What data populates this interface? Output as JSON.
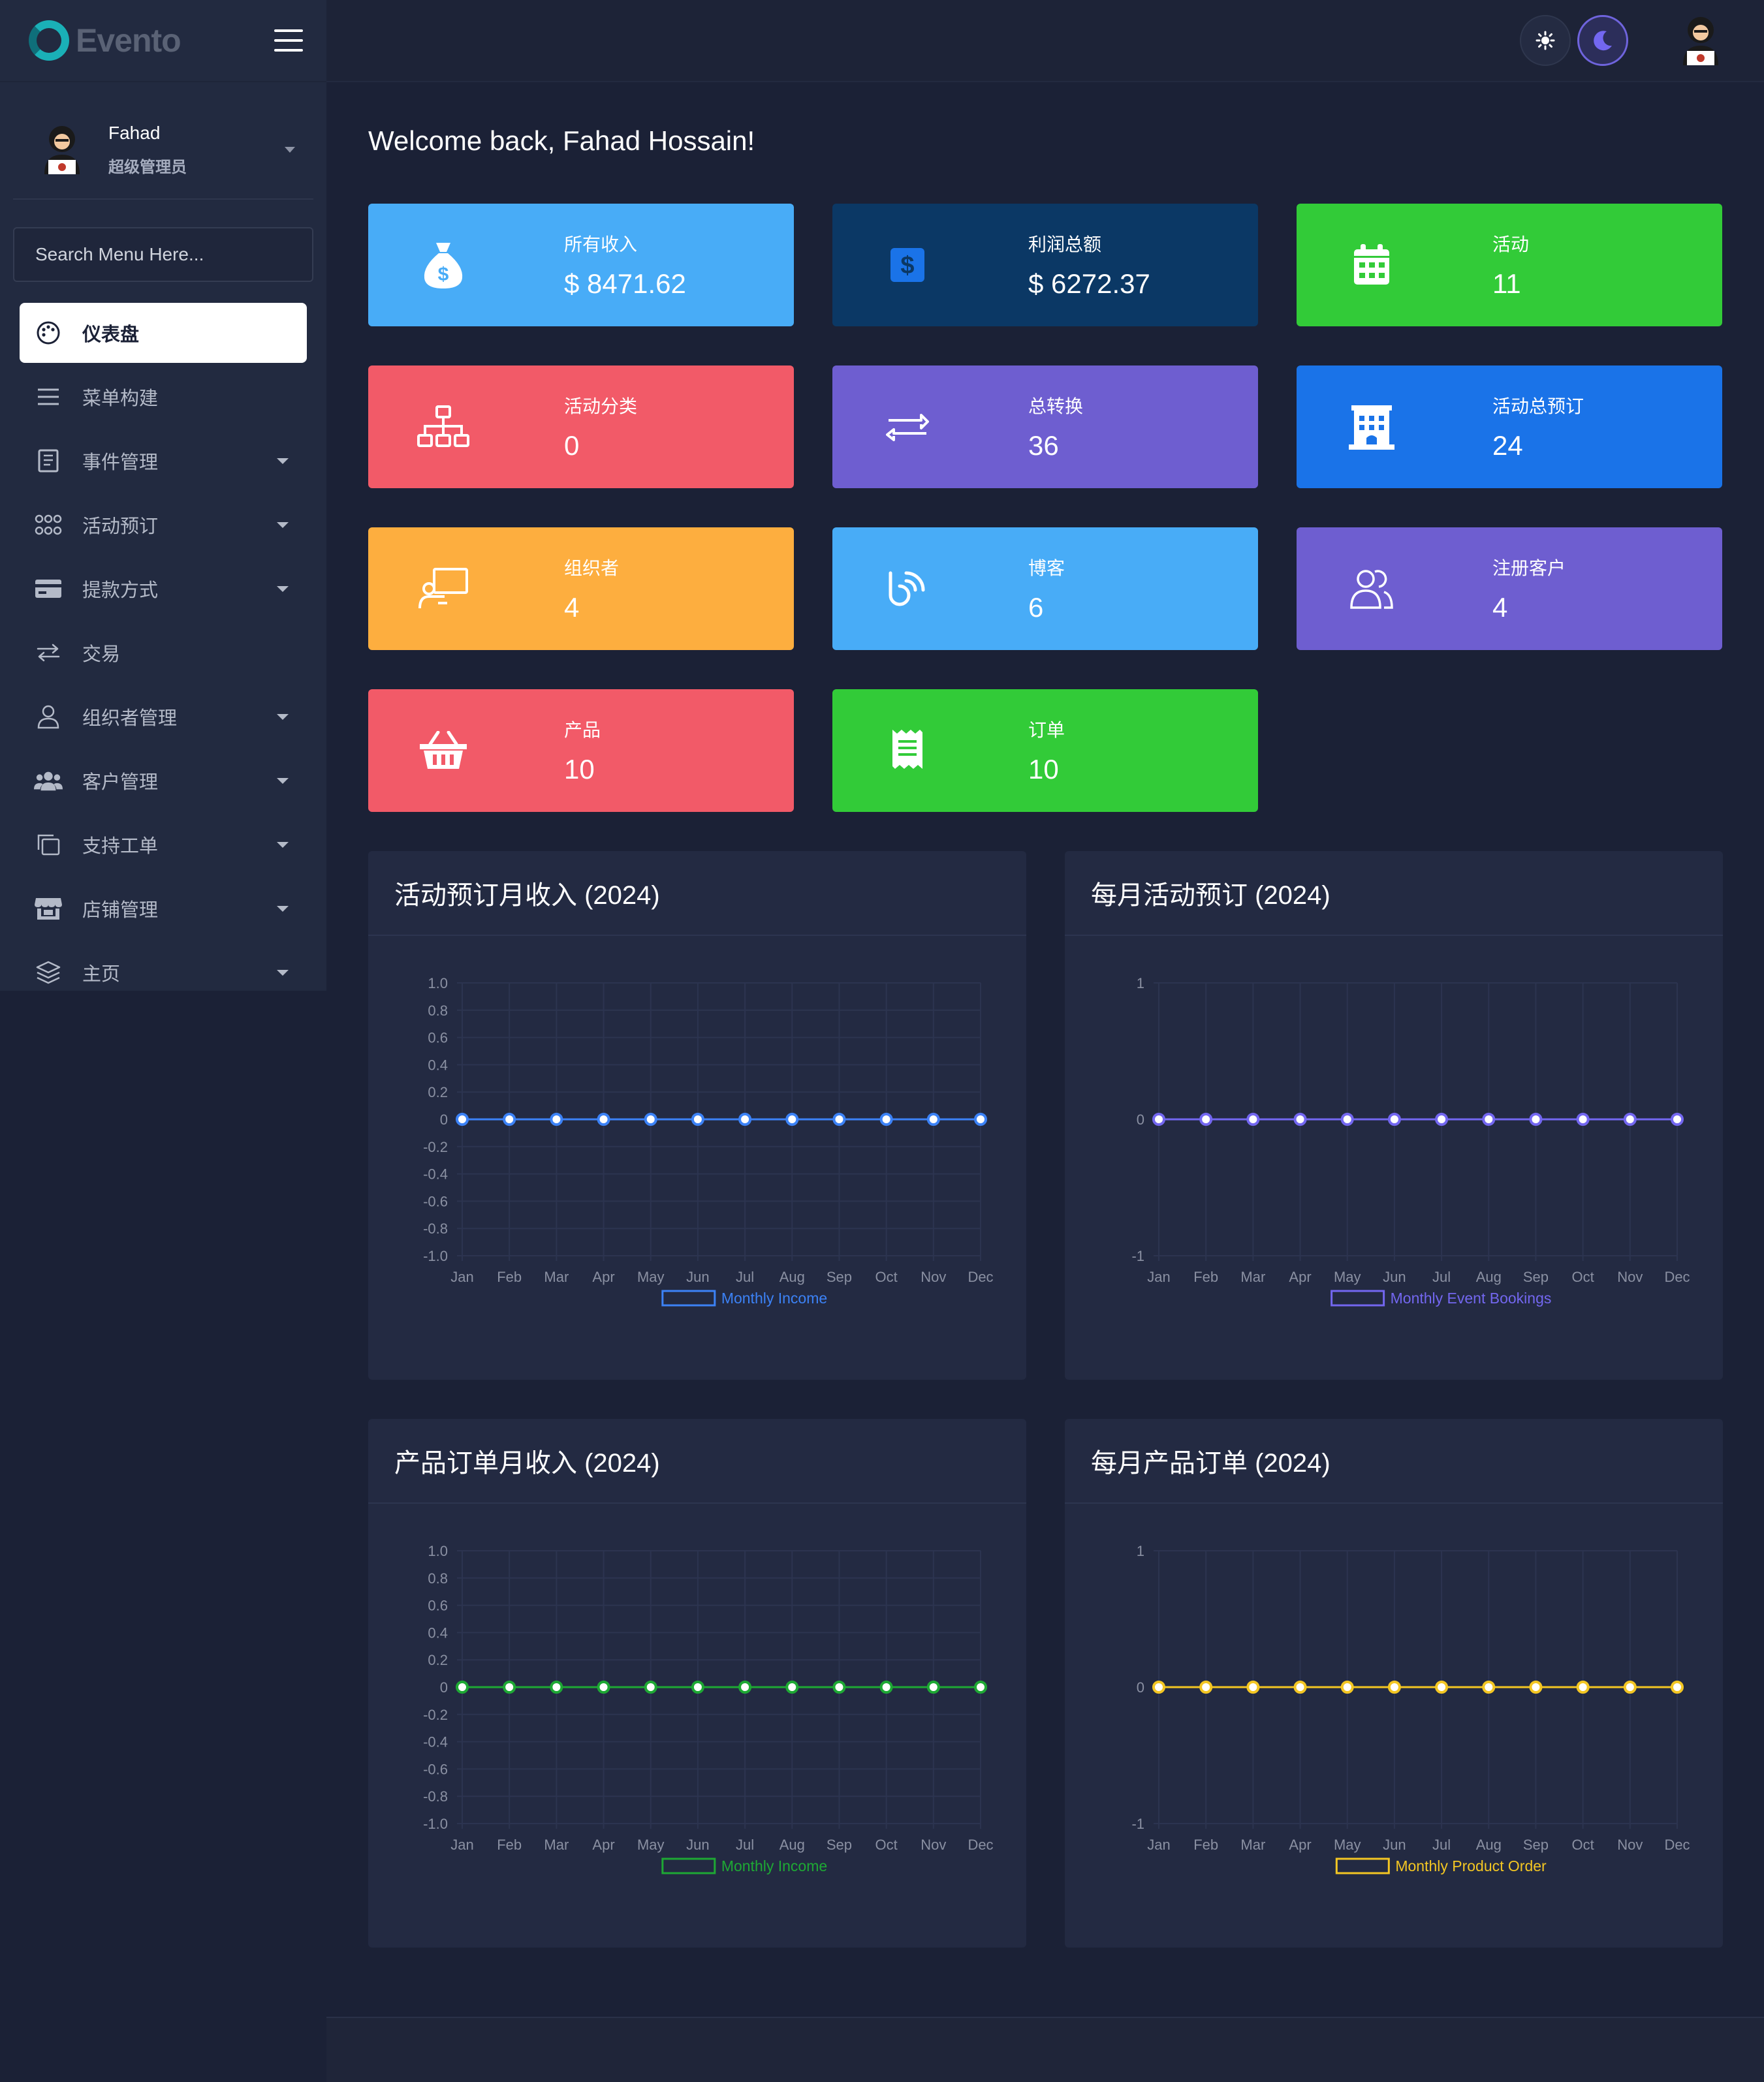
{
  "brand": {
    "name": "Evento"
  },
  "profile": {
    "name": "Fahad",
    "role": "超级管理员"
  },
  "search": {
    "placeholder": "Search Menu Here..."
  },
  "menu": [
    {
      "label": "仪表盘",
      "icon": "palette-icon",
      "active": true,
      "caret": false
    },
    {
      "label": "菜单构建",
      "icon": "list-icon",
      "active": false,
      "caret": false
    },
    {
      "label": "事件管理",
      "icon": "book-icon",
      "active": false,
      "caret": true
    },
    {
      "label": "活动预订",
      "icon": "users-group-icon",
      "active": false,
      "caret": true
    },
    {
      "label": "提款方式",
      "icon": "credit-card-icon",
      "active": false,
      "caret": true
    },
    {
      "label": "交易",
      "icon": "exchange-icon",
      "active": false,
      "caret": false
    },
    {
      "label": "组织者管理",
      "icon": "user-icon",
      "active": false,
      "caret": true
    },
    {
      "label": "客户管理",
      "icon": "users-icon",
      "active": false,
      "caret": true
    },
    {
      "label": "支持工单",
      "icon": "copy-icon",
      "active": false,
      "caret": true
    },
    {
      "label": "店铺管理",
      "icon": "store-icon",
      "active": false,
      "caret": true
    },
    {
      "label": "主页",
      "icon": "layers-icon",
      "active": false,
      "caret": true
    }
  ],
  "welcome": "Welcome back, Fahad Hossain!",
  "cards": [
    {
      "label": "所有收入",
      "value": "$ 8471.62",
      "color": "#48acf7",
      "icon": "money-bag-icon"
    },
    {
      "label": "利润总额",
      "value": "$ 6272.37",
      "color": "#0b3865",
      "icon": "dollar-square-icon"
    },
    {
      "label": "活动",
      "value": "11",
      "color": "#32cb38",
      "icon": "calendar-icon"
    },
    {
      "label": "活动分类",
      "value": "0",
      "color": "#f25a68",
      "icon": "sitemap-icon"
    },
    {
      "label": "总转换",
      "value": "36",
      "color": "#6e5ed0",
      "icon": "exchange-icon"
    },
    {
      "label": "活动总预订",
      "value": "24",
      "color": "#1a73e8",
      "icon": "building-icon"
    },
    {
      "label": "组织者",
      "value": "4",
      "color": "#fdae3f",
      "icon": "chalkboard-user-icon"
    },
    {
      "label": "博客",
      "value": "6",
      "color": "#48acf7",
      "icon": "blog-icon"
    },
    {
      "label": "注册客户",
      "value": "4",
      "color": "#6e5ed0",
      "icon": "user-friends-icon"
    },
    {
      "label": "产品",
      "value": "10",
      "color": "#f25a68",
      "icon": "basket-icon"
    },
    {
      "label": "订单",
      "value": "10",
      "color": "#32cb38",
      "icon": "receipt-icon"
    }
  ],
  "chart_data": [
    {
      "type": "line",
      "title": "活动预订月收入 (2024)",
      "categories": [
        "Jan",
        "Feb",
        "Mar",
        "Apr",
        "May",
        "Jun",
        "Jul",
        "Aug",
        "Sep",
        "Oct",
        "Nov",
        "Dec"
      ],
      "yticks": [
        "1.0",
        "0.8",
        "0.6",
        "0.4",
        "0.2",
        "0",
        "-0.2",
        "-0.4",
        "-0.6",
        "-0.8",
        "-1.0"
      ],
      "ylim": [
        -1,
        1
      ],
      "legend": "bottom",
      "grid": true,
      "series": [
        {
          "name": "Monthly Income",
          "values": [
            0,
            0,
            0,
            0,
            0,
            0,
            0,
            0,
            0,
            0,
            0,
            0
          ],
          "color": "#3c82f6"
        }
      ]
    },
    {
      "type": "line",
      "title": "每月活动预订 (2024)",
      "categories": [
        "Jan",
        "Feb",
        "Mar",
        "Apr",
        "May",
        "Jun",
        "Jul",
        "Aug",
        "Sep",
        "Oct",
        "Nov",
        "Dec"
      ],
      "yticks": [
        "1",
        "0",
        "-1"
      ],
      "ylim": [
        -1,
        1
      ],
      "legend": "bottom",
      "grid": true,
      "series": [
        {
          "name": "Monthly Event Bookings",
          "values": [
            0,
            0,
            0,
            0,
            0,
            0,
            0,
            0,
            0,
            0,
            0,
            0
          ],
          "color": "#7367f0"
        }
      ]
    },
    {
      "type": "line",
      "title": "产品订单月收入 (2024)",
      "categories": [
        "Jan",
        "Feb",
        "Mar",
        "Apr",
        "May",
        "Jun",
        "Jul",
        "Aug",
        "Sep",
        "Oct",
        "Nov",
        "Dec"
      ],
      "yticks": [
        "1.0",
        "0.8",
        "0.6",
        "0.4",
        "0.2",
        "0",
        "-0.2",
        "-0.4",
        "-0.6",
        "-0.8",
        "-1.0"
      ],
      "ylim": [
        -1,
        1
      ],
      "legend": "bottom",
      "grid": true,
      "series": [
        {
          "name": "Monthly Income",
          "values": [
            0,
            0,
            0,
            0,
            0,
            0,
            0,
            0,
            0,
            0,
            0,
            0
          ],
          "color": "#1ea834"
        }
      ]
    },
    {
      "type": "line",
      "title": "每月产品订单 (2024)",
      "categories": [
        "Jan",
        "Feb",
        "Mar",
        "Apr",
        "May",
        "Jun",
        "Jul",
        "Aug",
        "Sep",
        "Oct",
        "Nov",
        "Dec"
      ],
      "yticks": [
        "1",
        "0",
        "-1"
      ],
      "ylim": [
        -1,
        1
      ],
      "legend": "bottom",
      "grid": true,
      "series": [
        {
          "name": "Monthly Product Order",
          "values": [
            0,
            0,
            0,
            0,
            0,
            0,
            0,
            0,
            0,
            0,
            0,
            0
          ],
          "color": "#f3c623"
        }
      ]
    }
  ]
}
